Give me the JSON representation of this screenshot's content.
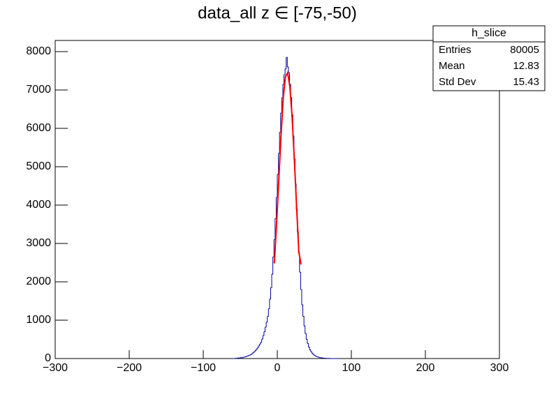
{
  "chart_data": {
    "type": "histogram",
    "title": "data_all z ∈ [-75,-50)",
    "bins": [
      -60,
      -58.5,
      -57,
      -55.5,
      -54,
      -52.5,
      -51,
      -49.5,
      -48,
      -46.5,
      -45,
      -43.5,
      -42,
      -40.5,
      -39,
      -37.5,
      -36,
      -34.5,
      -33,
      -31.5,
      -30,
      -28.5,
      -27,
      -25.5,
      -24,
      -22.5,
      -21,
      -19.5,
      -18,
      -16.5,
      -15,
      -13.5,
      -12,
      -10.5,
      -9,
      -7.5,
      -6,
      -4.5,
      -3,
      -1.5,
      0,
      1.5,
      3,
      4.5,
      6,
      7.5,
      9,
      10.5,
      12,
      13.5,
      15,
      16.5,
      18,
      19.5,
      21,
      22.5,
      24,
      25.5,
      27,
      28.5,
      30,
      31.5,
      33,
      34.5,
      36,
      37.5,
      39,
      40.5,
      42,
      43.5,
      45,
      46.5,
      48,
      49.5,
      51,
      52.5,
      54,
      55.5,
      57,
      58.5,
      60,
      61.5,
      63,
      64.5,
      66,
      67.5,
      69,
      70.5,
      72,
      73.5,
      75,
      76.5,
      78,
      79.5,
      81,
      82.5,
      84
    ],
    "values": [
      0,
      0,
      10,
      0,
      15,
      10,
      20,
      25,
      20,
      35,
      40,
      45,
      60,
      70,
      85,
      90,
      110,
      130,
      160,
      180,
      210,
      250,
      280,
      330,
      380,
      430,
      510,
      600,
      700,
      820,
      950,
      1100,
      1300,
      1550,
      1850,
      2200,
      2650,
      3100,
      3650,
      4200,
      4800,
      5350,
      5900,
      6400,
      6800,
      7150,
      7400,
      7550,
      7850,
      7600,
      7450,
      7150,
      6800,
      6350,
      5800,
      5200,
      4550,
      3900,
      3300,
      2750,
      2250,
      1800,
      1400,
      1100,
      850,
      650,
      500,
      390,
      300,
      230,
      180,
      140,
      110,
      85,
      65,
      50,
      40,
      30,
      25,
      20,
      15,
      10,
      10,
      5,
      5,
      0,
      5,
      0,
      0,
      0,
      0,
      0,
      0,
      0,
      0,
      0
    ],
    "color": "#000099",
    "fit": {
      "color": "#ff0000",
      "x": [
        -4,
        -1,
        2,
        5,
        8,
        11,
        14,
        17,
        20,
        23,
        26,
        29,
        32
      ],
      "values": [
        2480,
        3500,
        4650,
        5800,
        6780,
        7340,
        7450,
        7080,
        6300,
        5200,
        3980,
        2800,
        2450
      ]
    },
    "xlim": [
      -300,
      300
    ],
    "xticks": [
      {
        "value": -300,
        "label": "−300"
      },
      {
        "value": -200,
        "label": "−200"
      },
      {
        "value": -100,
        "label": "−100"
      },
      0,
      100,
      200,
      300
    ],
    "ylim": [
      0,
      8290
    ],
    "yticks": [
      0,
      1000,
      2000,
      3000,
      4000,
      5000,
      6000,
      7000,
      8000
    ],
    "stats": {
      "title": "h_slice",
      "rows": [
        [
          "Entries",
          80005
        ],
        [
          "Mean",
          12.83
        ],
        [
          "Std Dev",
          15.43
        ]
      ]
    }
  }
}
